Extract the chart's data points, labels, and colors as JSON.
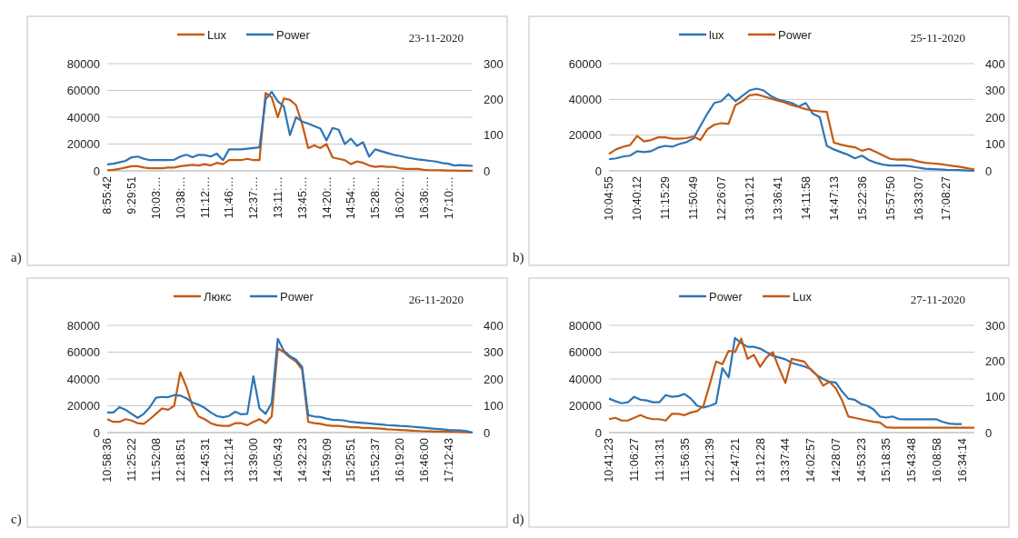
{
  "chart_data": [
    {
      "type": "line",
      "annotations": [
        "23-11-2020",
        "a)"
      ],
      "legend": "top",
      "grid": "y",
      "ylim": [
        0,
        80000
      ],
      "yticks": [
        0,
        20000,
        40000,
        60000,
        80000
      ],
      "y2lim": [
        0,
        300
      ],
      "y2ticks": [
        0,
        100,
        200,
        300
      ],
      "categories": [
        "8:55:42",
        null,
        null,
        null,
        "9:29:51",
        null,
        null,
        null,
        "10:03:…",
        null,
        null,
        null,
        "10:38:…",
        null,
        null,
        null,
        "11:12:…",
        null,
        null,
        null,
        "11:46:…",
        null,
        null,
        null,
        "12:37:…",
        null,
        null,
        null,
        "13:11:…",
        null,
        null,
        null,
        "13:45:…",
        null,
        null,
        null,
        "14:20:…",
        null,
        null,
        null,
        "14:54:…",
        null,
        null,
        null,
        "15:28:…",
        null,
        null,
        null,
        "16:02:…",
        null,
        null,
        null,
        "16:36:…",
        null,
        null,
        null,
        "17:10:…",
        null,
        null,
        null,
        null
      ],
      "series": [
        {
          "name": "Lux",
          "color": "#c55a11",
          "values": [
            500,
            800,
            1500,
            2500,
            3500,
            3500,
            2500,
            2000,
            2000,
            2000,
            2500,
            2500,
            3500,
            4000,
            4500,
            4000,
            5000,
            4000,
            6000,
            5000,
            8000,
            8000,
            8000,
            9000,
            8000,
            8000,
            58000,
            55000,
            40000,
            54000,
            53000,
            49000,
            35000,
            17000,
            19000,
            17000,
            20000,
            10000,
            9000,
            8000,
            5000,
            7000,
            6000,
            4000,
            3000,
            3500,
            3000,
            3000,
            2000,
            1500,
            1500,
            1500,
            800,
            500,
            500,
            400,
            300,
            200,
            100,
            100,
            100
          ]
        },
        {
          "name": "Power",
          "color": "#2e75b6",
          "axis": "y2",
          "values": [
            18,
            20,
            24,
            28,
            38,
            40,
            34,
            30,
            30,
            30,
            30,
            31,
            40,
            45,
            38,
            45,
            44,
            40,
            48,
            30,
            60,
            60,
            60,
            62,
            64,
            66,
            200,
            221,
            195,
            180,
            100,
            150,
            138,
            132,
            125,
            118,
            85,
            120,
            115,
            75,
            90,
            70,
            80,
            40,
            60,
            55,
            50,
            45,
            42,
            38,
            35,
            32,
            30,
            28,
            26,
            22,
            20,
            15,
            16,
            15,
            14
          ]
        }
      ]
    },
    {
      "type": "line",
      "annotations": [
        "25-11-2020",
        "b)"
      ],
      "legend": "top",
      "grid": "y",
      "ylim": [
        0,
        60000
      ],
      "yticks": [
        0,
        20000,
        40000,
        60000
      ],
      "y2lim": [
        0,
        400
      ],
      "y2ticks": [
        0,
        100,
        200,
        300,
        400
      ],
      "categories": [
        "10:04:55",
        null,
        null,
        null,
        "10:40:12",
        null,
        null,
        null,
        "11:15:29",
        null,
        null,
        null,
        "11:50:49",
        null,
        null,
        null,
        "12:26:07",
        null,
        null,
        null,
        "13:01:21",
        null,
        null,
        null,
        "13:36:41",
        null,
        null,
        null,
        "14:11:58",
        null,
        null,
        null,
        "14:47:13",
        null,
        null,
        null,
        "15:22:36",
        null,
        null,
        null,
        "15:57:50",
        null,
        null,
        null,
        "16:33:07",
        null,
        null,
        null,
        "17:08:27",
        null,
        null,
        null,
        null
      ],
      "series": [
        {
          "name": "lux",
          "color": "#2e75b6",
          "values": [
            6500,
            7000,
            8000,
            8500,
            11000,
            10500,
            11000,
            13000,
            14000,
            13500,
            15000,
            16000,
            18000,
            25000,
            32000,
            38000,
            39000,
            43000,
            39000,
            42000,
            45000,
            46000,
            45000,
            42000,
            40000,
            39000,
            38000,
            36000,
            38000,
            32000,
            30000,
            14000,
            12000,
            10500,
            9000,
            7000,
            8500,
            6000,
            4500,
            3500,
            3000,
            3000,
            3000,
            2500,
            1800,
            1200,
            1000,
            800,
            600,
            500,
            400,
            200,
            0
          ]
        },
        {
          "name": "Power",
          "color": "#c55a11",
          "axis": "y2",
          "values": [
            63,
            80,
            90,
            96,
            130,
            110,
            115,
            125,
            125,
            120,
            120,
            122,
            128,
            115,
            155,
            172,
            178,
            175,
            245,
            260,
            282,
            285,
            278,
            270,
            262,
            255,
            245,
            238,
            230,
            225,
            222,
            220,
            105,
            98,
            92,
            88,
            75,
            82,
            70,
            58,
            45,
            42,
            43,
            42,
            35,
            30,
            28,
            26,
            22,
            18,
            15,
            10,
            5
          ]
        }
      ]
    },
    {
      "type": "line",
      "annotations": [
        "26-11-2020",
        "c)"
      ],
      "legend": "top",
      "grid": "y",
      "ylim": [
        0,
        80000
      ],
      "yticks": [
        0,
        20000,
        40000,
        60000,
        80000
      ],
      "y2lim": [
        0,
        400
      ],
      "y2ticks": [
        0,
        100,
        200,
        300,
        400
      ],
      "categories": [
        "10:58:36",
        null,
        null,
        null,
        "11:25:22",
        null,
        null,
        null,
        "11:52:08",
        null,
        null,
        null,
        "12:18:51",
        null,
        null,
        null,
        "12:45:31",
        null,
        null,
        null,
        "13:12:14",
        null,
        null,
        null,
        "13:39:00",
        null,
        null,
        null,
        "14:05:43",
        null,
        null,
        null,
        "14:32:23",
        null,
        null,
        null,
        "14:59:09",
        null,
        null,
        null,
        "15:25:51",
        null,
        null,
        null,
        "15:52:37",
        null,
        null,
        null,
        "16:19:20",
        null,
        null,
        null,
        "16:46:00",
        null,
        null,
        null,
        "17:12:43",
        null,
        null,
        null,
        null
      ],
      "series": [
        {
          "name": "Люкс",
          "color": "#c55a11",
          "values": [
            10000,
            8000,
            8000,
            10000,
            9000,
            7000,
            6500,
            10000,
            14000,
            18000,
            17000,
            20000,
            45000,
            34000,
            20000,
            12000,
            10000,
            7000,
            5500,
            5000,
            5000,
            7000,
            7000,
            5500,
            8000,
            10000,
            7000,
            12000,
            63000,
            60000,
            56000,
            53000,
            47000,
            8000,
            7000,
            6500,
            5500,
            5000,
            5000,
            4500,
            4000,
            4000,
            3500,
            3500,
            3200,
            3000,
            2500,
            2200,
            2000,
            1800,
            1500,
            1200,
            1000,
            900,
            800,
            700,
            600,
            500,
            400,
            200,
            0
          ]
        },
        {
          "name": "Power",
          "color": "#2e75b6",
          "axis": "y2",
          "values": [
            75,
            75,
            95,
            85,
            70,
            55,
            70,
            95,
            130,
            133,
            132,
            140,
            138,
            128,
            112,
            104,
            92,
            75,
            62,
            57,
            62,
            78,
            68,
            70,
            210,
            90,
            70,
            110,
            350,
            305,
            285,
            272,
            245,
            65,
            60,
            58,
            52,
            48,
            47,
            45,
            40,
            38,
            36,
            34,
            32,
            30,
            28,
            27,
            25,
            24,
            22,
            20,
            18,
            16,
            14,
            12,
            10,
            9,
            8,
            6,
            0
          ]
        }
      ]
    },
    {
      "type": "line",
      "annotations": [
        "27-11-2020",
        "d)"
      ],
      "legend": "top",
      "grid": "y",
      "ylim": [
        0,
        80000
      ],
      "yticks": [
        0,
        20000,
        40000,
        60000,
        80000
      ],
      "y2lim": [
        0,
        300
      ],
      "y2ticks": [
        0,
        100,
        200,
        300
      ],
      "categories": [
        "10:41:23",
        null,
        null,
        null,
        "11:06:27",
        null,
        null,
        null,
        "11:31:31",
        null,
        null,
        null,
        "11:56:35",
        null,
        null,
        null,
        "12:21:39",
        null,
        null,
        null,
        "12:47:21",
        null,
        null,
        null,
        "13:12:28",
        null,
        null,
        null,
        "13:37:44",
        null,
        null,
        null,
        "14:02:57",
        null,
        null,
        null,
        "14:28:07",
        null,
        null,
        null,
        "14:53:23",
        null,
        null,
        null,
        "15:18:35",
        null,
        null,
        null,
        "15:43:48",
        null,
        null,
        null,
        "16:08:58",
        null,
        null,
        null,
        "16:34:14",
        null,
        null
      ],
      "series": [
        {
          "name": "Power",
          "color": "#2e75b6",
          "axis": "y2",
          "values": [
            95,
            88,
            82,
            85,
            100,
            92,
            90,
            85,
            85,
            105,
            100,
            102,
            108,
            95,
            75,
            70,
            75,
            82,
            180,
            155,
            265,
            250,
            240,
            240,
            235,
            225,
            215,
            210,
            205,
            195,
            190,
            185,
            178,
            160,
            150,
            142,
            140,
            115,
            95,
            92,
            80,
            75,
            65,
            45,
            42,
            45,
            38,
            37,
            37,
            37,
            37,
            37,
            37,
            30,
            25,
            24,
            24,
            null,
            null
          ]
        },
        {
          "name": "Lux",
          "color": "#c55a11",
          "values": [
            10000,
            11000,
            9000,
            9000,
            11000,
            13000,
            11000,
            10000,
            10000,
            9000,
            14000,
            14000,
            13000,
            15000,
            16000,
            20000,
            36000,
            53000,
            51000,
            61000,
            60000,
            70000,
            55000,
            58000,
            49000,
            56000,
            60000,
            48000,
            37000,
            55000,
            54000,
            53000,
            47000,
            43000,
            35000,
            38000,
            33000,
            24000,
            12000,
            11000,
            10000,
            9000,
            8000,
            7500,
            4000,
            3700,
            3700,
            3700,
            3700,
            3700,
            3700,
            3700,
            3700,
            3700,
            3700,
            3700,
            3700,
            3700,
            3700
          ]
        }
      ]
    }
  ]
}
